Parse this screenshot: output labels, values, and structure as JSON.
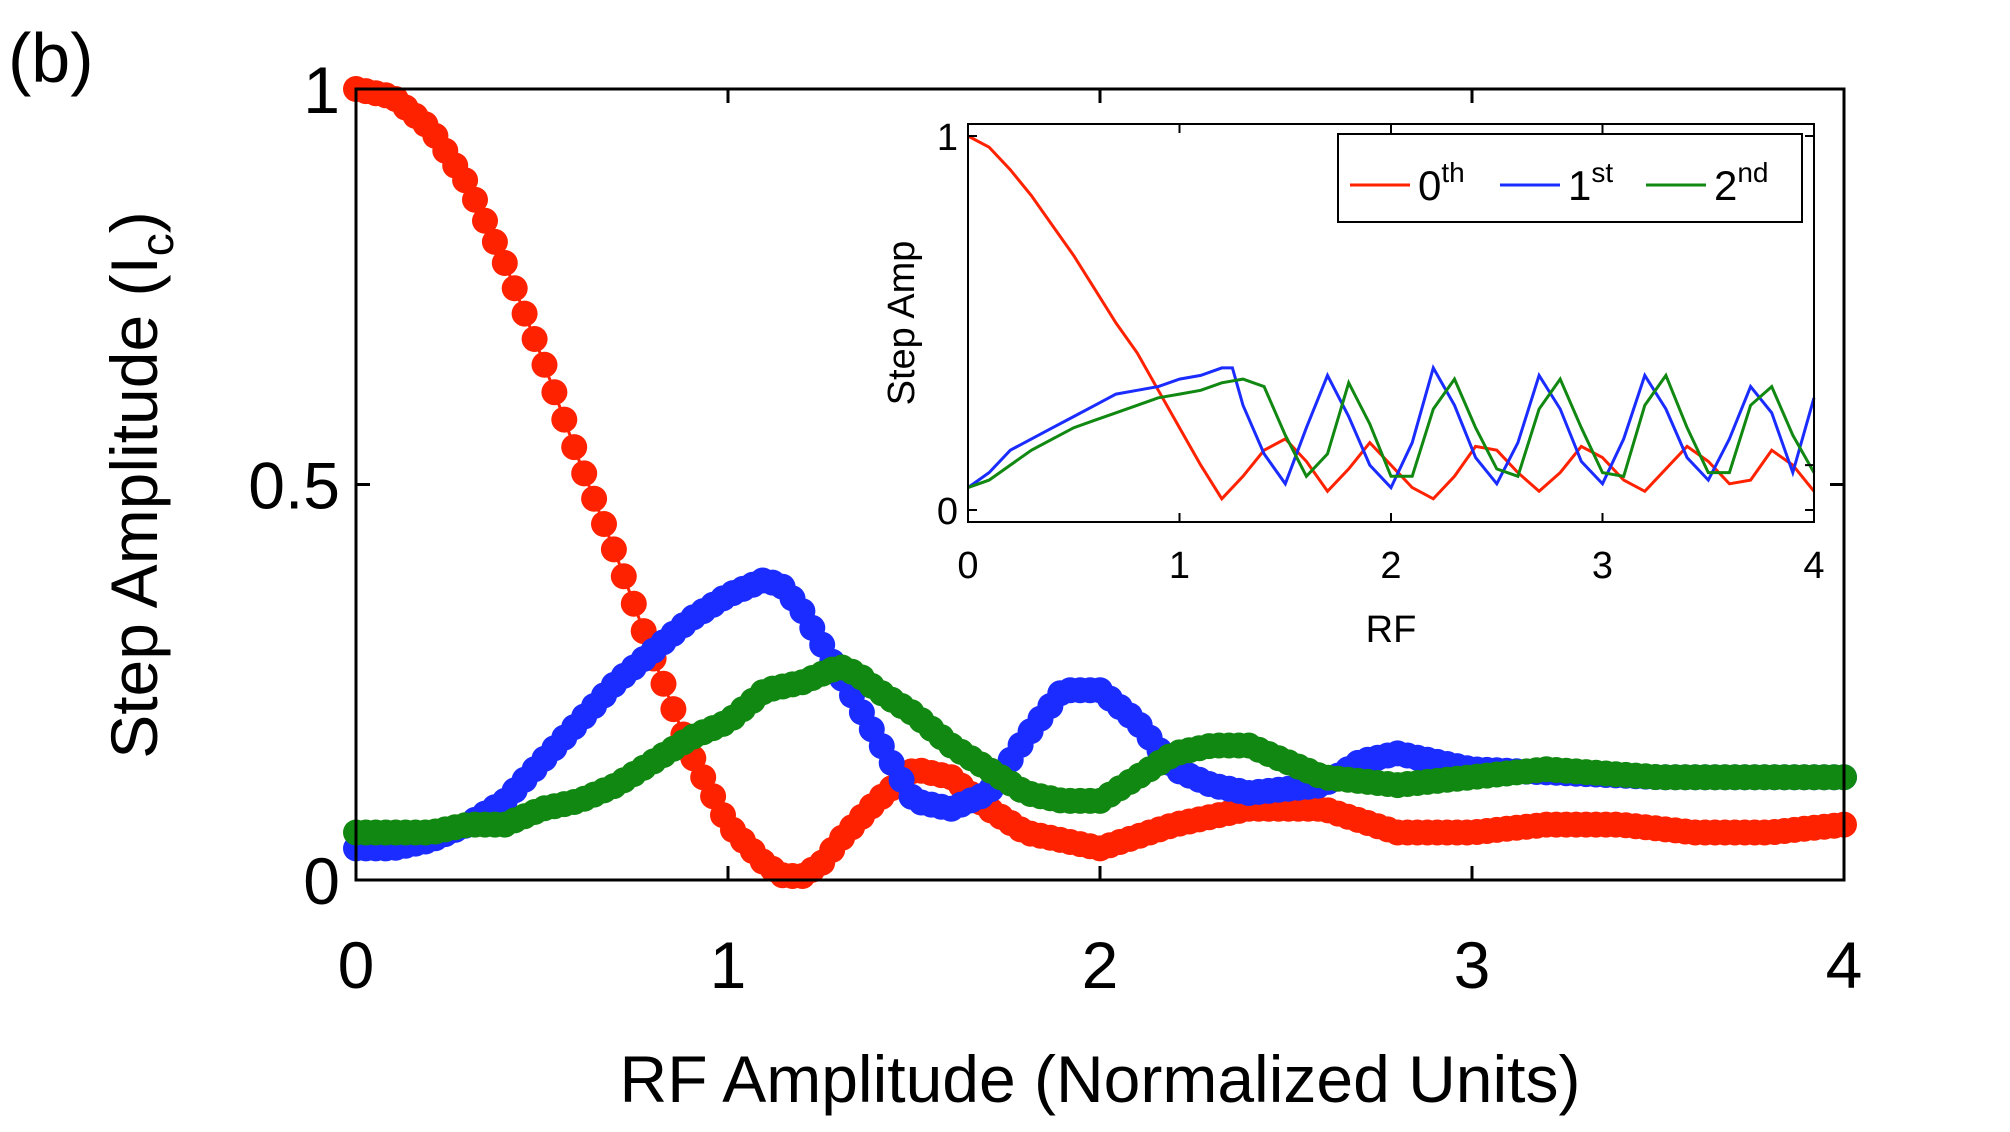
{
  "panel_label": "(b)",
  "colors": {
    "order0": "#ff2200",
    "order1": "#1a2cff",
    "order2": "#118811"
  },
  "chart_data": [
    {
      "type": "scatter",
      "title": "",
      "xlabel": "RF Amplitude (Normalized Units)",
      "ylabel_main": "Step Amplitude (I",
      "ylabel_sub": "c",
      "ylabel_close": ")",
      "xlim": [
        0,
        4
      ],
      "ylim": [
        0,
        1
      ],
      "xticks": [
        0,
        1,
        2,
        3,
        4
      ],
      "xtick_labels": [
        "0",
        "1",
        "2",
        "3",
        "4"
      ],
      "yticks": [
        0,
        0.5,
        1
      ],
      "ytick_labels": [
        "0",
        "0.5",
        "1"
      ],
      "grid": false,
      "series": [
        {
          "name": "0th",
          "color": "#ff2200",
          "x": [
            0,
            0.1,
            0.2,
            0.3,
            0.4,
            0.5,
            0.6,
            0.7,
            0.8,
            0.9,
            1.0,
            1.1,
            1.15,
            1.2,
            1.25,
            1.3,
            1.4,
            1.5,
            1.6,
            1.7,
            1.8,
            1.9,
            2.0,
            2.2,
            2.4,
            2.6,
            2.8,
            3.0,
            3.2,
            3.4,
            3.6,
            3.8,
            4.0
          ],
          "y": [
            1.0,
            0.99,
            0.95,
            0.88,
            0.78,
            0.66,
            0.53,
            0.41,
            0.28,
            0.16,
            0.07,
            0.02,
            0.005,
            0.005,
            0.02,
            0.05,
            0.1,
            0.14,
            0.13,
            0.09,
            0.06,
            0.05,
            0.04,
            0.07,
            0.09,
            0.09,
            0.06,
            0.06,
            0.07,
            0.07,
            0.06,
            0.06,
            0.07
          ]
        },
        {
          "name": "1st",
          "color": "#1a2cff",
          "x": [
            0,
            0.1,
            0.2,
            0.3,
            0.4,
            0.5,
            0.6,
            0.7,
            0.8,
            0.9,
            1.0,
            1.05,
            1.1,
            1.15,
            1.2,
            1.3,
            1.4,
            1.45,
            1.5,
            1.6,
            1.7,
            1.8,
            1.9,
            2.0,
            2.1,
            2.2,
            2.3,
            2.4,
            2.6,
            2.7,
            2.8,
            3.0,
            3.5,
            4.0
          ],
          "y": [
            0.04,
            0.04,
            0.05,
            0.07,
            0.1,
            0.15,
            0.2,
            0.25,
            0.29,
            0.33,
            0.36,
            0.37,
            0.38,
            0.37,
            0.34,
            0.26,
            0.18,
            0.14,
            0.1,
            0.09,
            0.11,
            0.18,
            0.24,
            0.24,
            0.2,
            0.14,
            0.12,
            0.11,
            0.12,
            0.15,
            0.16,
            0.14,
            0.13,
            0.13
          ]
        },
        {
          "name": "2nd",
          "color": "#118811",
          "x": [
            0,
            0.1,
            0.2,
            0.3,
            0.4,
            0.5,
            0.6,
            0.7,
            0.8,
            0.9,
            1.0,
            1.1,
            1.2,
            1.3,
            1.35,
            1.4,
            1.5,
            1.6,
            1.7,
            1.8,
            1.9,
            2.0,
            2.1,
            2.2,
            2.3,
            2.4,
            2.5,
            2.6,
            2.8,
            3.0,
            3.2,
            3.5,
            3.7,
            4.0
          ],
          "y": [
            0.06,
            0.06,
            0.06,
            0.07,
            0.07,
            0.09,
            0.1,
            0.12,
            0.15,
            0.18,
            0.2,
            0.24,
            0.25,
            0.27,
            0.26,
            0.24,
            0.21,
            0.17,
            0.14,
            0.11,
            0.1,
            0.1,
            0.13,
            0.16,
            0.17,
            0.17,
            0.15,
            0.13,
            0.12,
            0.13,
            0.14,
            0.13,
            0.13,
            0.13
          ]
        }
      ]
    },
    {
      "type": "line",
      "title": "",
      "xlabel": "RF",
      "ylabel": "Step Amp",
      "xlim": [
        0,
        4
      ],
      "ylim": [
        0,
        1
      ],
      "xticks": [
        0,
        1,
        2,
        3,
        4
      ],
      "xtick_labels": [
        "0",
        "1",
        "2",
        "3",
        "4"
      ],
      "yticks": [
        0,
        1
      ],
      "ytick_labels": [
        "0",
        "1"
      ],
      "legend_position": "top-right",
      "grid": false,
      "series": [
        {
          "name": "0th",
          "legend_base": "0",
          "legend_sup": "th",
          "color": "#ff2200",
          "x": [
            0,
            0.1,
            0.2,
            0.3,
            0.4,
            0.5,
            0.6,
            0.7,
            0.8,
            0.9,
            1.0,
            1.1,
            1.2,
            1.3,
            1.4,
            1.5,
            1.6,
            1.7,
            1.8,
            1.9,
            2.0,
            2.1,
            2.2,
            2.3,
            2.4,
            2.5,
            2.6,
            2.7,
            2.8,
            2.9,
            3.0,
            3.1,
            3.2,
            3.3,
            3.4,
            3.5,
            3.6,
            3.7,
            3.8,
            3.9,
            4.0
          ],
          "y": [
            1.0,
            0.97,
            0.91,
            0.84,
            0.76,
            0.68,
            0.59,
            0.5,
            0.42,
            0.32,
            0.22,
            0.12,
            0.03,
            0.09,
            0.16,
            0.19,
            0.13,
            0.05,
            0.11,
            0.18,
            0.12,
            0.06,
            0.03,
            0.09,
            0.17,
            0.16,
            0.1,
            0.05,
            0.1,
            0.17,
            0.14,
            0.08,
            0.05,
            0.11,
            0.17,
            0.13,
            0.07,
            0.08,
            0.16,
            0.12,
            0.05
          ]
        },
        {
          "name": "1st",
          "legend_base": "1",
          "legend_sup": "st",
          "color": "#1a2cff",
          "x": [
            0,
            0.1,
            0.2,
            0.3,
            0.4,
            0.5,
            0.6,
            0.7,
            0.8,
            0.9,
            1.0,
            1.1,
            1.2,
            1.25,
            1.3,
            1.4,
            1.5,
            1.6,
            1.7,
            1.8,
            1.9,
            2.0,
            2.1,
            2.2,
            2.3,
            2.4,
            2.5,
            2.6,
            2.7,
            2.8,
            2.9,
            3.0,
            3.1,
            3.2,
            3.3,
            3.4,
            3.5,
            3.6,
            3.7,
            3.8,
            3.9,
            4.0
          ],
          "y": [
            0.06,
            0.1,
            0.16,
            0.19,
            0.22,
            0.25,
            0.28,
            0.31,
            0.32,
            0.33,
            0.35,
            0.36,
            0.38,
            0.38,
            0.28,
            0.15,
            0.07,
            0.22,
            0.36,
            0.25,
            0.12,
            0.06,
            0.18,
            0.38,
            0.28,
            0.14,
            0.07,
            0.18,
            0.36,
            0.27,
            0.13,
            0.07,
            0.19,
            0.36,
            0.27,
            0.14,
            0.08,
            0.19,
            0.33,
            0.26,
            0.1,
            0.3
          ]
        },
        {
          "name": "2nd",
          "legend_base": "2",
          "legend_sup": "nd",
          "color": "#118811",
          "x": [
            0,
            0.1,
            0.2,
            0.3,
            0.4,
            0.5,
            0.6,
            0.7,
            0.8,
            0.9,
            1.0,
            1.1,
            1.2,
            1.3,
            1.4,
            1.5,
            1.6,
            1.7,
            1.8,
            1.9,
            2.0,
            2.1,
            2.2,
            2.3,
            2.4,
            2.5,
            2.6,
            2.7,
            2.8,
            2.9,
            3.0,
            3.1,
            3.2,
            3.3,
            3.4,
            3.5,
            3.6,
            3.7,
            3.8,
            3.9,
            4.0
          ],
          "y": [
            0.06,
            0.08,
            0.12,
            0.16,
            0.19,
            0.22,
            0.24,
            0.26,
            0.28,
            0.3,
            0.31,
            0.32,
            0.34,
            0.35,
            0.33,
            0.2,
            0.09,
            0.15,
            0.34,
            0.23,
            0.09,
            0.09,
            0.27,
            0.35,
            0.22,
            0.11,
            0.09,
            0.27,
            0.35,
            0.22,
            0.1,
            0.09,
            0.28,
            0.36,
            0.22,
            0.1,
            0.1,
            0.28,
            0.33,
            0.2,
            0.1
          ]
        }
      ]
    }
  ]
}
